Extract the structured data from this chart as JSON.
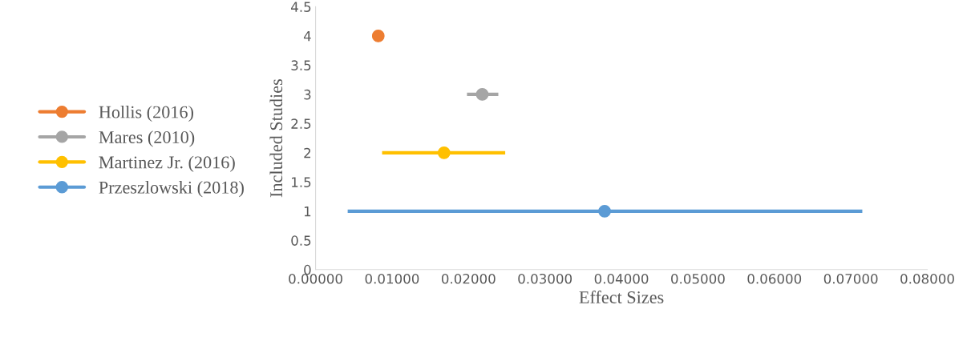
{
  "chart_data": {
    "type": "scatter",
    "xlabel": "Effect Sizes",
    "ylabel": "Included Studies",
    "xlim": [
      0,
      0.08
    ],
    "xticks": [
      {
        "value": 0,
        "label": "0.00000"
      },
      {
        "value": 0.01,
        "label": "0.01000"
      },
      {
        "value": 0.02,
        "label": "0.02000"
      },
      {
        "value": 0.03,
        "label": "0.03000"
      },
      {
        "value": 0.04,
        "label": "0.04000"
      },
      {
        "value": 0.05,
        "label": "0.05000"
      },
      {
        "value": 0.06,
        "label": "0.06000"
      },
      {
        "value": 0.07,
        "label": "0.07000"
      },
      {
        "value": 0.08,
        "label": "0.08000"
      }
    ],
    "ylim": [
      0,
      4.5
    ],
    "yticks": [
      0,
      0.5,
      1,
      1.5,
      2,
      2.5,
      3,
      3.5,
      4,
      4.5
    ],
    "grid": false,
    "legend": "left",
    "marker": "circle",
    "series": [
      {
        "name": "Hollis (2016)",
        "color": "#ed7d31",
        "x": [
          0.0082
        ],
        "values": [
          4
        ]
      },
      {
        "name": "Mares (2010)",
        "color": "#a5a5a5",
        "x": [
          0.0218
        ],
        "values": [
          3
        ],
        "xerrors": [
          [
            0.0198,
            0.0239
          ]
        ]
      },
      {
        "name": "Martinez Jr. (2016)",
        "color": "#ffc000",
        "x": [
          0.0168
        ],
        "values": [
          2
        ],
        "xerrors": [
          [
            0.0087,
            0.0248
          ]
        ]
      },
      {
        "name": "Przeszlowski (2018)",
        "color": "#5b9bd5",
        "x": [
          0.0378
        ],
        "values": [
          1
        ],
        "xerrors": [
          [
            0.0042,
            0.0715
          ]
        ]
      }
    ]
  }
}
